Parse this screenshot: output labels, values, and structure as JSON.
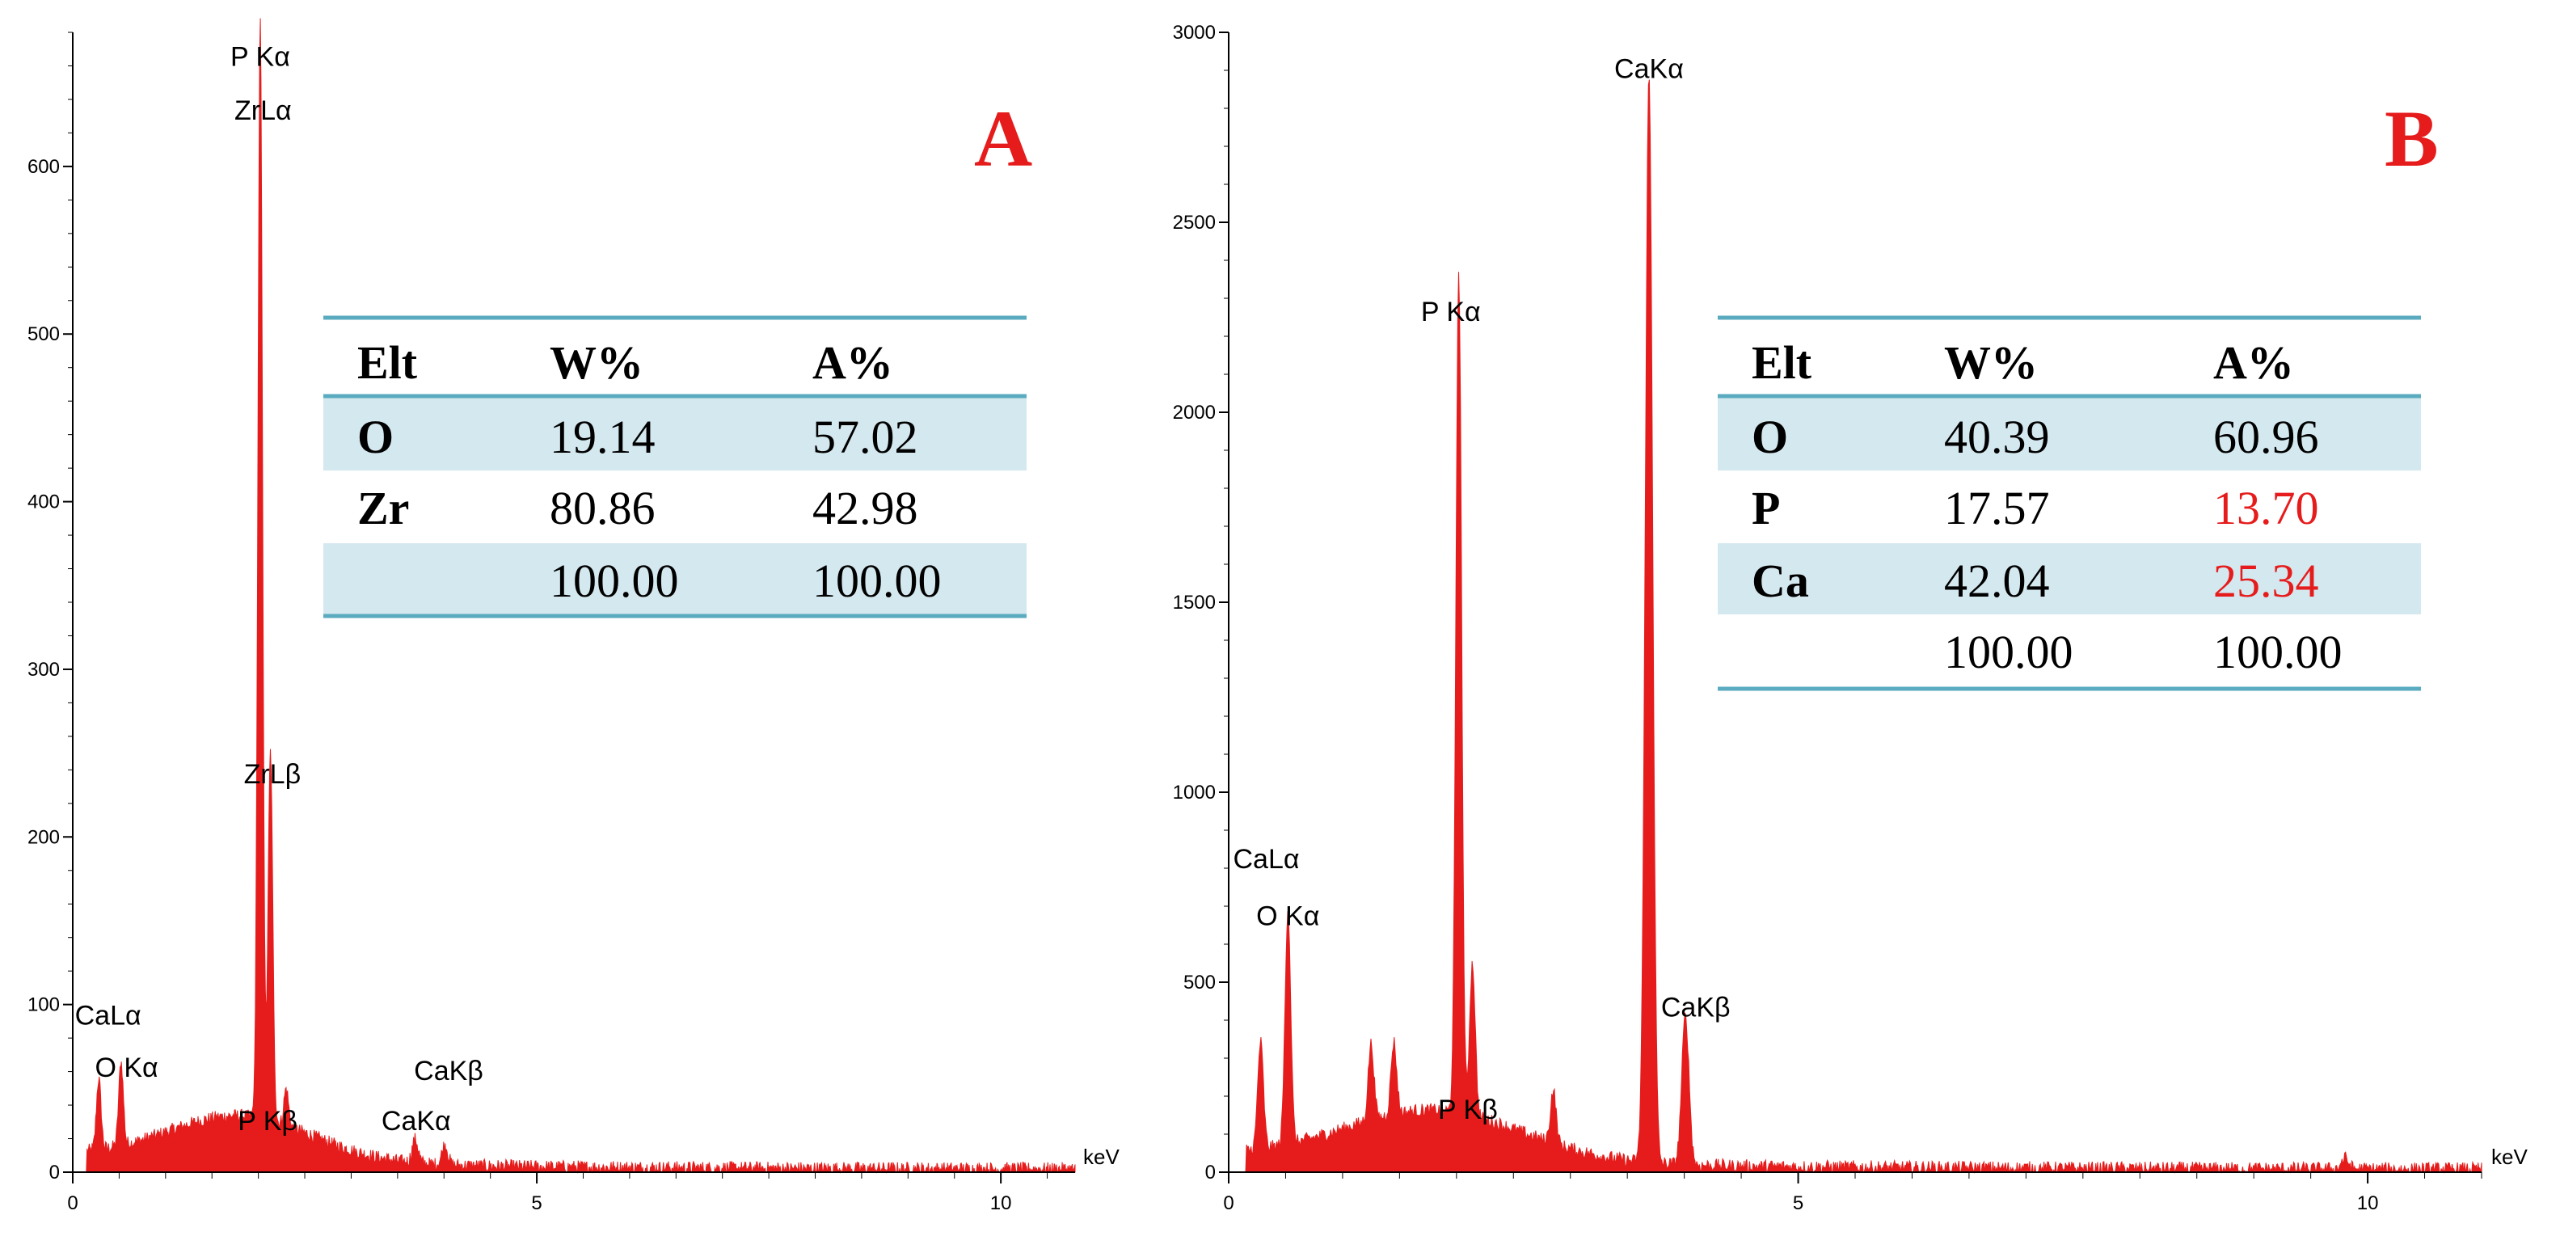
{
  "chart_data": [
    {
      "type": "area",
      "panel": "A",
      "x_unit": "keV",
      "xlim": [
        0,
        10.8
      ],
      "ylim": [
        0,
        680
      ],
      "x_ticks": [
        0,
        5,
        10
      ],
      "y_ticks": [
        0,
        100,
        200,
        300,
        400,
        500,
        600
      ],
      "grid": false,
      "fill_color": "#e61c1c",
      "peaks": [
        {
          "x": 0.28,
          "y": 42
        },
        {
          "x": 0.52,
          "y": 50
        },
        {
          "x": 2.02,
          "y": 655
        },
        {
          "x": 2.13,
          "y": 220
        },
        {
          "x": 2.3,
          "y": 22
        },
        {
          "x": 3.69,
          "y": 14
        },
        {
          "x": 4.01,
          "y": 12
        }
      ],
      "peak_labels": [
        {
          "text": "P Kα",
          "x": 2.02,
          "y": 660
        },
        {
          "text": "ZrLα",
          "x": 2.05,
          "y": 628
        },
        {
          "text": "ZrLβ",
          "x": 2.15,
          "y": 232
        },
        {
          "text": "CaLα",
          "x": 0.38,
          "y": 88
        },
        {
          "text": "O Kα",
          "x": 0.58,
          "y": 57
        },
        {
          "text": "P Kβ",
          "x": 2.1,
          "y": 25
        },
        {
          "text": "CaKβ",
          "x": 4.05,
          "y": 55
        },
        {
          "text": "CaKα",
          "x": 3.7,
          "y": 25
        }
      ],
      "table": {
        "headers": [
          "Elt",
          "W%",
          "A%"
        ],
        "rows": [
          {
            "elt": "O",
            "w": "19.14",
            "a": "57.02"
          },
          {
            "elt": "Zr",
            "w": "80.86",
            "a": "42.98"
          },
          {
            "elt": "",
            "w": "100.00",
            "a": "100.00"
          }
        ]
      }
    },
    {
      "type": "area",
      "panel": "B",
      "x_unit": "keV",
      "xlim": [
        0,
        11
      ],
      "ylim": [
        0,
        3000
      ],
      "x_ticks": [
        0,
        5,
        10
      ],
      "y_ticks": [
        0,
        500,
        1000,
        1500,
        2000,
        2500,
        3000
      ],
      "grid": false,
      "fill_color": "#e61c1c",
      "peaks": [
        {
          "x": 0.28,
          "y": 280
        },
        {
          "x": 0.52,
          "y": 620
        },
        {
          "x": 1.25,
          "y": 200
        },
        {
          "x": 1.45,
          "y": 190
        },
        {
          "x": 2.02,
          "y": 2220
        },
        {
          "x": 2.14,
          "y": 400
        },
        {
          "x": 2.85,
          "y": 140
        },
        {
          "x": 3.69,
          "y": 2860
        },
        {
          "x": 4.01,
          "y": 390
        },
        {
          "x": 9.8,
          "y": 28
        }
      ],
      "peak_labels": [
        {
          "text": "CaKα",
          "x": 3.69,
          "y": 2880
        },
        {
          "text": "P Kα",
          "x": 1.95,
          "y": 2240
        },
        {
          "text": "CaLα",
          "x": 0.33,
          "y": 800
        },
        {
          "text": "O Kα",
          "x": 0.52,
          "y": 650
        },
        {
          "text": "CaKβ",
          "x": 4.1,
          "y": 410
        },
        {
          "text": "P Kβ",
          "x": 2.1,
          "y": 140
        }
      ],
      "table": {
        "headers": [
          "Elt",
          "W%",
          "A%"
        ],
        "rows": [
          {
            "elt": "O",
            "w": "40.39",
            "a": "60.96"
          },
          {
            "elt": "P",
            "w": "17.57",
            "a": "13.70"
          },
          {
            "elt": "Ca",
            "w": "42.04",
            "a": "25.34"
          },
          {
            "elt": "",
            "w": "100.00",
            "a": "100.00"
          }
        ],
        "highlight_color": "#e61c1c",
        "highlighted": [
          "13.70",
          "25.34"
        ]
      }
    }
  ]
}
